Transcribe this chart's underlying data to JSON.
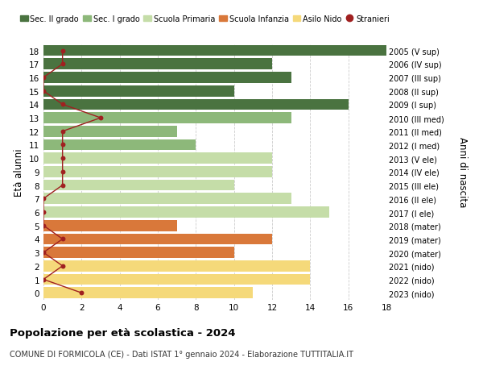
{
  "ages": [
    18,
    17,
    16,
    15,
    14,
    13,
    12,
    11,
    10,
    9,
    8,
    7,
    6,
    5,
    4,
    3,
    2,
    1,
    0
  ],
  "right_labels": [
    "2005 (V sup)",
    "2006 (IV sup)",
    "2007 (III sup)",
    "2008 (II sup)",
    "2009 (I sup)",
    "2010 (III med)",
    "2011 (II med)",
    "2012 (I med)",
    "2013 (V ele)",
    "2014 (IV ele)",
    "2015 (III ele)",
    "2016 (II ele)",
    "2017 (I ele)",
    "2018 (mater)",
    "2019 (mater)",
    "2020 (mater)",
    "2021 (nido)",
    "2022 (nido)",
    "2023 (nido)"
  ],
  "bar_values": [
    18,
    12,
    13,
    10,
    16,
    13,
    7,
    8,
    12,
    12,
    10,
    13,
    15,
    7,
    12,
    10,
    14,
    14,
    11
  ],
  "bar_colors": [
    "#4a7340",
    "#4a7340",
    "#4a7340",
    "#4a7340",
    "#4a7340",
    "#8db87a",
    "#8db87a",
    "#8db87a",
    "#c5dda8",
    "#c5dda8",
    "#c5dda8",
    "#c5dda8",
    "#c5dda8",
    "#d9783a",
    "#d9783a",
    "#d9783a",
    "#f5d97a",
    "#f5d97a",
    "#f5d97a"
  ],
  "stranieri_values": [
    1,
    1,
    0,
    0,
    1,
    3,
    1,
    1,
    1,
    1,
    1,
    0,
    0,
    0,
    1,
    0,
    1,
    0,
    2
  ],
  "title_main": "Popolazione per età scolastica - 2024",
  "title_sub": "COMUNE DI FORMICOLA (CE) - Dati ISTAT 1° gennaio 2024 - Elaborazione TUTTITALIA.IT",
  "ylabel": "Età alunni",
  "ylabel_right": "Anni di nascita",
  "xlim": [
    0,
    18
  ],
  "xticks": [
    0,
    2,
    4,
    6,
    8,
    10,
    12,
    14,
    16,
    18
  ],
  "legend_labels": [
    "Sec. II grado",
    "Sec. I grado",
    "Scuola Primaria",
    "Scuola Infanzia",
    "Asilo Nido",
    "Stranieri"
  ],
  "legend_colors": [
    "#4a7340",
    "#8db87a",
    "#c5dda8",
    "#d9783a",
    "#f5d97a",
    "#a02020"
  ],
  "stranieri_color": "#a02020",
  "grid_color": "#cccccc",
  "bar_height": 0.82,
  "background_color": "#ffffff"
}
